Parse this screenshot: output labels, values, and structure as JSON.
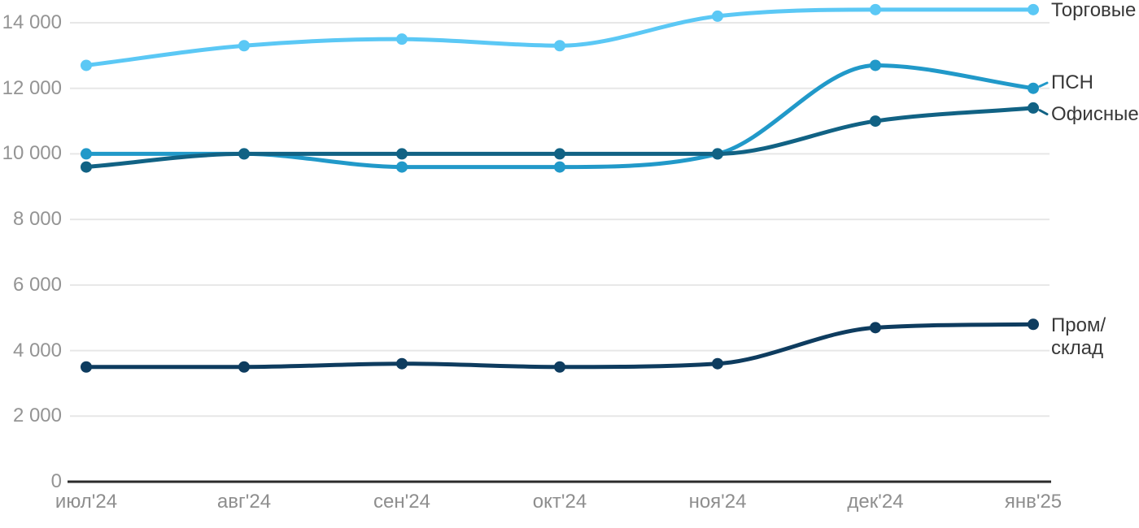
{
  "chart_data": {
    "type": "line",
    "title": "",
    "xlabel": "",
    "ylabel": "",
    "x_categories": [
      "июл'24",
      "авг'24",
      "сен'24",
      "окт'24",
      "ноя'24",
      "дек'24",
      "янв'25"
    ],
    "y_ticks": [
      "0",
      "2 000",
      "4 000",
      "6 000",
      "8 000",
      "10 000",
      "12 000",
      "14 000"
    ],
    "y_tick_values": [
      0,
      2000,
      4000,
      6000,
      8000,
      10000,
      12000,
      14000
    ],
    "ylim": [
      0,
      14000
    ],
    "grid": "horizontal-only",
    "legend_position": "right-at-line-ends",
    "series": [
      {
        "name": "Торговые",
        "label_lines": [
          "Торговые"
        ],
        "color": "#5BC8F5",
        "connector_dash": false,
        "values": [
          12700,
          13300,
          13500,
          13300,
          14200,
          14400,
          14400
        ]
      },
      {
        "name": "ПСН",
        "label_lines": [
          "ПСН"
        ],
        "color": "#2199C9",
        "connector_dash": true,
        "values": [
          10000,
          10000,
          9600,
          9600,
          10000,
          12700,
          12000
        ]
      },
      {
        "name": "Офисные",
        "label_lines": [
          "Офисные"
        ],
        "color": "#116284",
        "connector_dash": true,
        "values": [
          9600,
          10000,
          10000,
          10000,
          10000,
          11000,
          11400
        ]
      },
      {
        "name": "Пром/склад",
        "label_lines": [
          "Пром/",
          "склад"
        ],
        "color": "#0E3C5F",
        "connector_dash": false,
        "values": [
          3500,
          3500,
          3600,
          3500,
          3600,
          4700,
          4800
        ]
      }
    ],
    "colors": {
      "background": "#FFFFFF",
      "grid": "#E7E7E7",
      "axis": "#2B2B2B",
      "y_tick_label": "#949494",
      "x_tick_label": "#8E8E8E",
      "series_label": "#383838"
    }
  }
}
